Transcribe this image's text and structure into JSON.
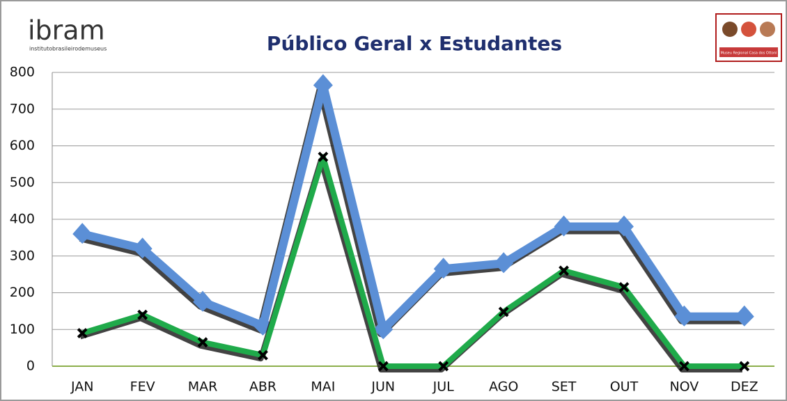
{
  "chart_data": {
    "type": "line",
    "title": "Público Geral x Estudantes",
    "logo_left": {
      "name": "ibram",
      "tagline": "institutobrasileirodemuseus"
    },
    "logo_right": {
      "caption": "Museu Regional Casa dos Ottoni"
    },
    "categories": [
      "JAN",
      "FEV",
      "MAR",
      "ABR",
      "MAI",
      "JUN",
      "JUL",
      "AGO",
      "SET",
      "OUT",
      "NOV",
      "DEZ"
    ],
    "series": [
      {
        "color": "#5b8fd6",
        "marker": "diamond",
        "values": [
          360,
          320,
          175,
          110,
          765,
          100,
          265,
          280,
          380,
          380,
          135,
          135
        ]
      },
      {
        "color": "#1faa4a",
        "marker": "x",
        "values": [
          90,
          140,
          65,
          30,
          570,
          0,
          0,
          148,
          260,
          215,
          0,
          0
        ]
      }
    ],
    "ylim": [
      0,
      800
    ],
    "yticks": [
      0,
      100,
      200,
      300,
      400,
      500,
      600,
      700,
      800
    ],
    "grid": true
  }
}
